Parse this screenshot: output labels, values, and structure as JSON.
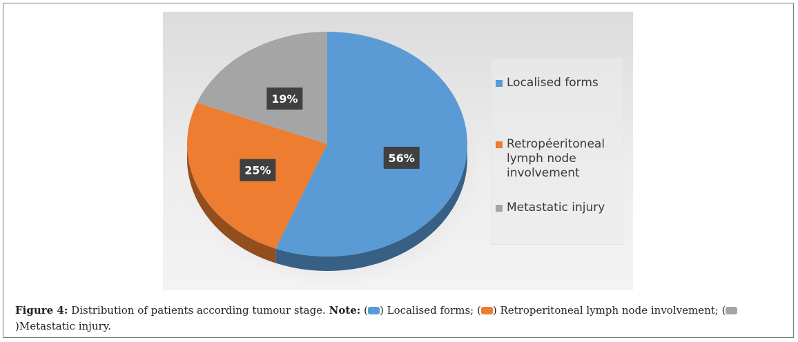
{
  "chart_data": {
    "type": "pie",
    "style": "3d",
    "categories": [
      "Localised forms",
      "Retropéeritoneal lymph node involvement",
      "Metastatic injury"
    ],
    "values": [
      56,
      25,
      19
    ],
    "data_labels": [
      "56%",
      "25%",
      "19%"
    ],
    "colors": [
      "#5B9BD5",
      "#ED7D31",
      "#A5A5A5"
    ],
    "legend_position": "right"
  },
  "legend": {
    "items": [
      {
        "label": "Localised forms",
        "color": "#5B9BD5"
      },
      {
        "label": "Retropéeritoneal lymph node involvement",
        "color": "#ED7D31"
      },
      {
        "label": "Metastatic injury",
        "color": "#A5A5A5"
      }
    ]
  },
  "caption": {
    "figure_label": "Figure 4:",
    "text": "Distribution of patients according tumour stage.",
    "note_label": "Note:",
    "open1": "(",
    "item1": ") Localised forms; (",
    "item2": ") Retroperitoneal lymph node involvement; (",
    "item3": ")Metastatic injury."
  }
}
